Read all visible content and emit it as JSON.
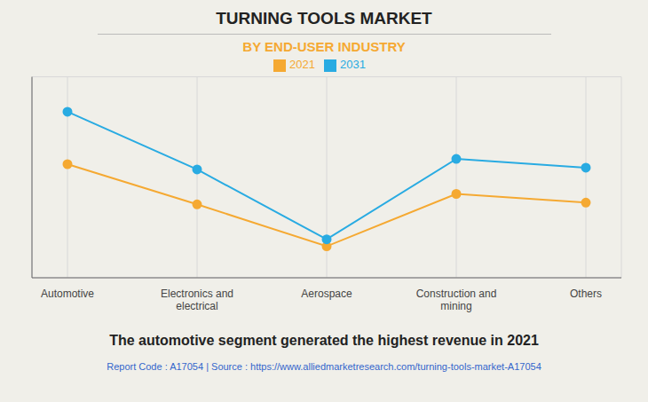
{
  "chart_data": {
    "type": "line",
    "title": "TURNING TOOLS MARKET",
    "subtitle": "BY END-USER INDUSTRY",
    "categories": [
      "Automotive",
      "Electronics and\nelectrical",
      "Aerospace",
      "Construction and\nmining",
      "Others"
    ],
    "series": [
      {
        "name": "2021",
        "color": "#F5A932",
        "values": [
          65,
          42,
          18,
          48,
          43
        ]
      },
      {
        "name": "2031",
        "color": "#29ABE2",
        "values": [
          95,
          62,
          22,
          68,
          63
        ]
      }
    ],
    "ylim": [
      0,
      115
    ],
    "yticks": [
      0,
      20,
      40,
      60,
      80,
      100
    ],
    "grid": true,
    "legend": "top",
    "marker": "circle",
    "line_style": "solid",
    "tick_labels": "x",
    "annotations": [
      "The automotive segment generated the highest revenue in 2021",
      "Report Code : A17054  |  Source : https://www.alliedmarketresearch.com/turning-tools-market-A17054"
    ]
  }
}
